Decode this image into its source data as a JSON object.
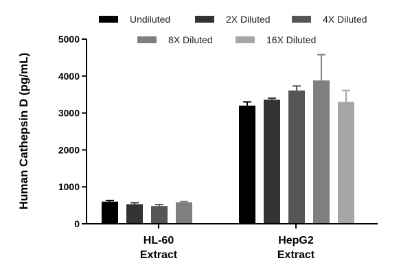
{
  "chart_data": {
    "type": "bar",
    "ylabel": "Human Cathepsin D (pg/mL)",
    "ylim": [
      0,
      5000
    ],
    "yticks": [
      0,
      1000,
      2000,
      3000,
      4000,
      5000
    ],
    "categories": [
      {
        "line1": "HL-60",
        "line2": "Extract"
      },
      {
        "line1": "HepG2",
        "line2": "Extract"
      }
    ],
    "series": [
      {
        "name": "Undiluted",
        "color": "#000000",
        "values": [
          600,
          3200
        ],
        "errors": [
          30,
          100
        ]
      },
      {
        "name": "2X Diluted",
        "color": "#333333",
        "values": [
          530,
          3360
        ],
        "errors": [
          40,
          40
        ]
      },
      {
        "name": "4X Diluted",
        "color": "#555555",
        "values": [
          480,
          3610
        ],
        "errors": [
          40,
          120
        ]
      },
      {
        "name": "8X Diluted",
        "color": "#7f7f7f",
        "values": [
          580,
          3880
        ],
        "errors": [
          20,
          700
        ]
      },
      {
        "name": "16X Diluted",
        "color": "#a6a6a6",
        "values": [
          null,
          3300
        ],
        "errors": [
          null,
          310
        ]
      }
    ],
    "legend": "top",
    "grid": false
  }
}
